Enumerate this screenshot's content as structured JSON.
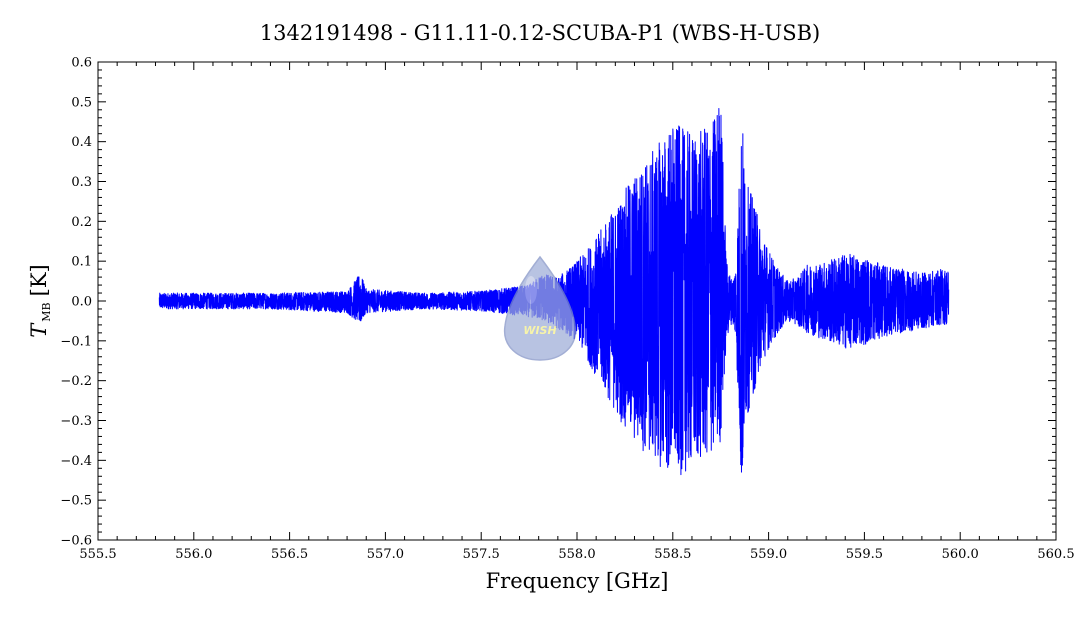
{
  "chart_data": {
    "type": "line",
    "title": "1342191498 - G11.11-0.12-SCUBA-P1 (WBS-H-USB)",
    "xlabel": "Frequency [GHz]",
    "ylabel": {
      "symbol": "T",
      "subscript": "MB",
      "unit": "[K]"
    },
    "xlim": [
      555.5,
      560.5
    ],
    "ylim": [
      -0.6,
      0.6
    ],
    "x_ticks": [
      "555.5",
      "556.0",
      "556.5",
      "557.0",
      "557.5",
      "558.0",
      "558.5",
      "559.0",
      "559.5",
      "560.0",
      "560.5"
    ],
    "y_ticks": [
      "0.6",
      "0.5",
      "0.4",
      "0.3",
      "0.2",
      "0.1",
      "0.0",
      "−0.1",
      "−0.2",
      "−0.3",
      "−0.4",
      "−0.5",
      "−0.6"
    ],
    "series": [
      {
        "color": "#0000ff",
        "x_range": [
          555.82,
          559.94
        ],
        "envelope": {
          "x": [
            555.82,
            556.0,
            556.4,
            556.8,
            556.87,
            556.9,
            557.2,
            557.5,
            557.75,
            557.82,
            557.9,
            558.0,
            558.1,
            558.2,
            558.3,
            558.4,
            558.5,
            558.6,
            558.7,
            558.75,
            558.78,
            558.81,
            558.83,
            558.86,
            558.88,
            558.92,
            558.96,
            559.0,
            559.05,
            559.1,
            559.15,
            559.2,
            559.3,
            559.4,
            559.5,
            559.6,
            559.7,
            559.8,
            559.9,
            559.94
          ],
          "upper": [
            0.02,
            0.02,
            0.02,
            0.025,
            0.07,
            0.03,
            0.02,
            0.025,
            0.04,
            0.07,
            0.06,
            0.1,
            0.16,
            0.24,
            0.32,
            0.38,
            0.45,
            0.42,
            0.44,
            0.53,
            0.1,
            0.05,
            0.1,
            0.49,
            0.3,
            0.26,
            0.18,
            0.13,
            0.08,
            0.05,
            0.06,
            0.09,
            0.1,
            0.12,
            0.11,
            0.09,
            0.08,
            0.07,
            0.08,
            0.08
          ],
          "lower": [
            -0.02,
            -0.02,
            -0.02,
            -0.03,
            -0.06,
            -0.03,
            -0.02,
            -0.025,
            -0.04,
            -0.05,
            -0.07,
            -0.1,
            -0.19,
            -0.28,
            -0.36,
            -0.4,
            -0.45,
            -0.42,
            -0.39,
            -0.36,
            -0.1,
            -0.05,
            -0.1,
            -0.52,
            -0.3,
            -0.24,
            -0.16,
            -0.12,
            -0.08,
            -0.05,
            -0.06,
            -0.08,
            -0.1,
            -0.12,
            -0.11,
            -0.09,
            -0.08,
            -0.07,
            -0.06,
            -0.06
          ]
        }
      }
    ],
    "grid": false,
    "legend": "none"
  },
  "watermark": {
    "text": "WISH",
    "colors": {
      "drop": "#9eacd8",
      "drop_edge": "#7f8fc4",
      "text": "#f4f08a"
    }
  },
  "colors": {
    "line": "#0000ff",
    "axes": "#000000",
    "background": "#ffffff"
  }
}
